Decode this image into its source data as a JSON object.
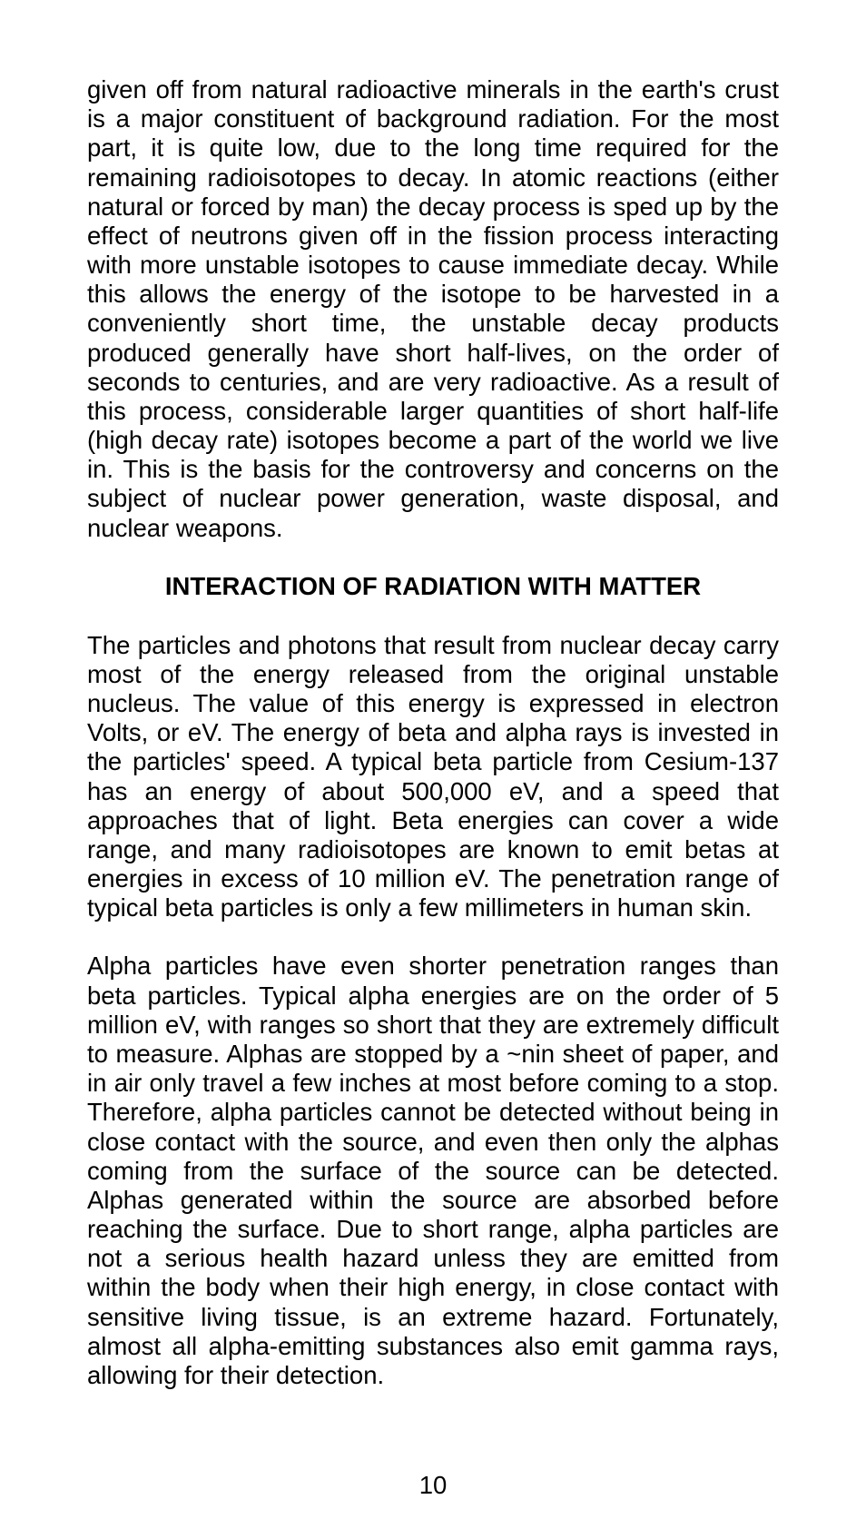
{
  "document": {
    "page_number": "10",
    "background_color": "#ffffff",
    "text_color": "#000000",
    "body_fontsize": 27.5,
    "heading_fontsize": 27.5,
    "line_height": 1.17,
    "paragraphs": {
      "p1": "given off from natural radioactive minerals in the earth's crust is a major constituent of background radiation. For the most part, it is quite low, due to the long time required for the remaining radioisotopes to decay. In atomic reactions (either natural or forced by man) the decay process is sped up by the effect of neutrons given off in the fission process interacting with more unstable isotopes to cause immediate decay. While this allows the energy of the isotope to be harvested in a conveniently short time, the unstable decay products produced generally have short half-lives, on the order of seconds to centuries, and are very radioactive. As a result of this process, considerable larger quantities of short half-life (high decay rate) isotopes become a part of the world we live in. This is the basis for the controversy and concerns on the subject of nuclear power generation, waste disposal, and nuclear weapons.",
      "heading": "INTERACTION OF RADIATION WITH MATTER",
      "p2": "The particles and photons that result from nuclear decay carry most of the energy released from the original unstable nucleus. The value of this energy is expressed in electron Volts, or eV. The energy of beta and alpha rays is invested in the particles' speed. A typical beta particle from Cesium-137 has an energy of about 500,000 eV, and a speed that approaches that of light. Beta energies can cover a wide range, and many radioisotopes are known to emit betas at energies in excess of 10 million eV. The penetration range of typical beta particles is only a few millimeters in human skin.",
      "p3": "Alpha particles have even shorter penetration ranges than beta particles. Typical alpha energies are on the order of 5 million eV, with ranges so short that they are extremely difficult to measure. Alphas are stopped by a ~nin sheet of paper, and in air only travel a few inches at most before coming to a stop. Therefore, alpha particles cannot be detected without being in close contact with the source, and even then only the alphas coming from the surface of the source can be detected. Alphas generated within the source are absorbed before reaching the surface. Due to short range, alpha particles are not a serious health hazard unless they are emitted from within the body when their high energy, in close contact with sensitive living tissue, is an extreme hazard. Fortunately, almost all alpha-emitting substances also emit gamma rays, allowing for their detection."
    }
  }
}
